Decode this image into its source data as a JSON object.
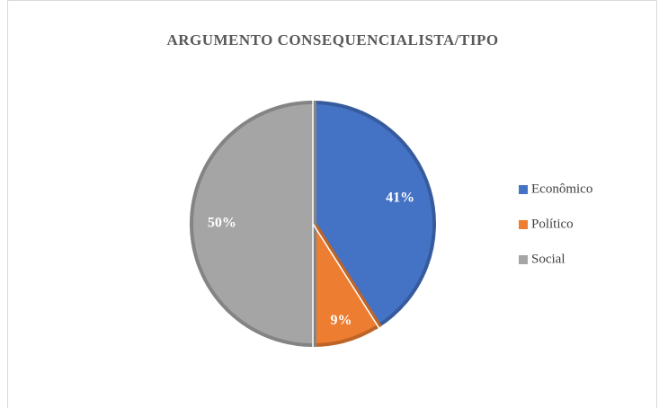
{
  "chart_data": {
    "type": "pie",
    "title": "ARGUMENTO CONSEQUENCIALISTA/TIPO",
    "categories": [
      "Econômico",
      "Político",
      "Social"
    ],
    "values": [
      41,
      9,
      50
    ],
    "value_labels": [
      "41%",
      "9%",
      "50%"
    ],
    "colors": [
      "#4472c4",
      "#ed7d31",
      "#a5a5a5"
    ],
    "legend": "right"
  }
}
